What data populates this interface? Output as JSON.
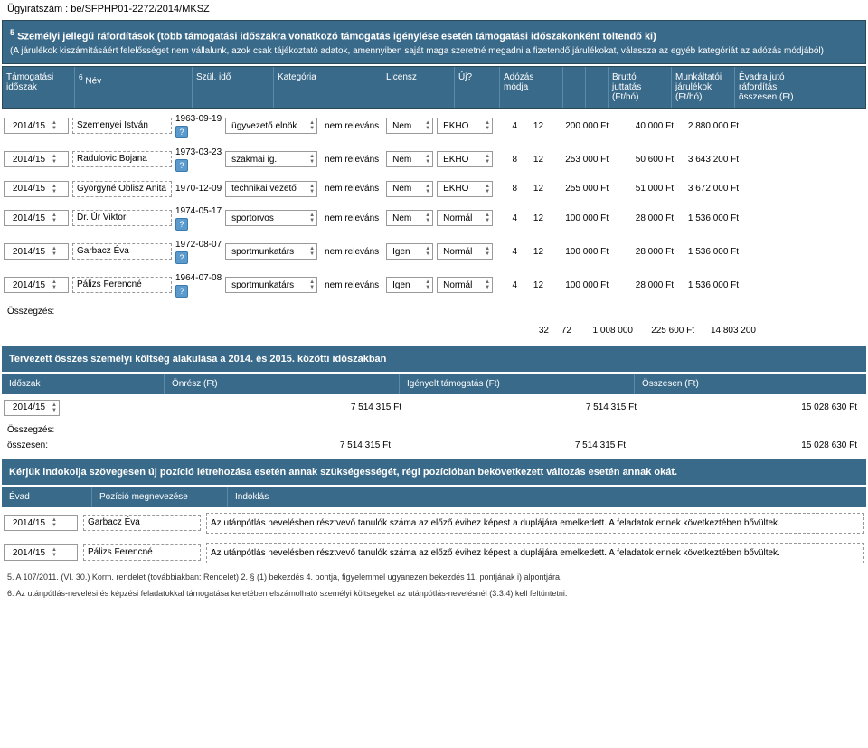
{
  "docId": "Ügyiratszám : be/SFPHP01-2272/2014/MKSZ",
  "header": {
    "sup": "5",
    "title": "Személyi jellegű ráfordítások (több támogatási időszakra vonatkozó támogatás igénylése esetén támogatási időszakonként töltendő ki)",
    "sub": "(A járulékok kiszámításáért felelősséget nem vállalunk, azok csak tájékoztató adatok, amennyiben saját maga szeretné megadni a fizetendő járulékokat, válassza az egyéb kategóriát az adózás módjából)"
  },
  "cols": {
    "idoszak": "Támogatási időszak",
    "nev_sup": "6",
    "nev": "Név",
    "szul": "Szül. idő",
    "kat": "Kategória",
    "lic": "Licensz",
    "uj": "Új?",
    "adozas": "Adózás módja",
    "brutto": "Bruttó juttatás (Ft/hó)",
    "munka": "Munkáltatói járulékok (Ft/hó)",
    "evadra": "Évadra jutó ráfordítás összesen (Ft)"
  },
  "rows": [
    {
      "idoszak": "2014/15",
      "nev": "Szemenyei István",
      "szul": "1963-09-19",
      "kat": "ügyvezető elnök",
      "lic": "nem releváns",
      "uj": "Nem",
      "adozas": "EKHO",
      "n1": "4",
      "n2": "12",
      "brutto": "200 000 Ft",
      "munka": "40 000 Ft",
      "evadra": "2 880 000 Ft"
    },
    {
      "idoszak": "2014/15",
      "nev": "Radulovic Bojana",
      "szul": "1973-03-23",
      "kat": "szakmai ig.",
      "lic": "nem releváns",
      "uj": "Nem",
      "adozas": "EKHO",
      "n1": "8",
      "n2": "12",
      "brutto": "253 000 Ft",
      "munka": "50 600 Ft",
      "evadra": "3 643 200 Ft"
    },
    {
      "idoszak": "2014/15",
      "nev": "Györgyné Oblisz Anita",
      "szul": "1970-12-09",
      "kat": "technikai vezető",
      "lic": "nem releváns",
      "uj": "Nem",
      "adozas": "EKHO",
      "n1": "8",
      "n2": "12",
      "brutto": "255 000 Ft",
      "munka": "51 000 Ft",
      "evadra": "3 672 000 Ft"
    },
    {
      "idoszak": "2014/15",
      "nev": "Dr. Úr Viktor",
      "szul": "1974-05-17",
      "kat": "sportorvos",
      "lic": "nem releváns",
      "uj": "Nem",
      "adozas": "Normál",
      "n1": "4",
      "n2": "12",
      "brutto": "100 000 Ft",
      "munka": "28 000 Ft",
      "evadra": "1 536 000 Ft"
    },
    {
      "idoszak": "2014/15",
      "nev": "Garbacz Éva",
      "szul": "1972-08-07",
      "kat": "sportmunkatárs",
      "lic": "nem releváns",
      "uj": "Igen",
      "adozas": "Normál",
      "n1": "4",
      "n2": "12",
      "brutto": "100 000 Ft",
      "munka": "28 000 Ft",
      "evadra": "1 536 000 Ft"
    },
    {
      "idoszak": "2014/15",
      "nev": "Pálizs Ferencné",
      "szul": "1964-07-08",
      "kat": "sportmunkatárs",
      "lic": "nem releváns",
      "uj": "Igen",
      "adozas": "Normál",
      "n1": "4",
      "n2": "12",
      "brutto": "100 000 Ft",
      "munka": "28 000 Ft",
      "evadra": "1 536 000 Ft"
    }
  ],
  "summary1": {
    "label": "Összegzés:",
    "n1": "32",
    "n2": "72",
    "brutto": "1 008 000",
    "munka": "225 600 Ft",
    "evadra": "14 803 200"
  },
  "section2": {
    "title": "Tervezett összes személyi költség alakulása a 2014. és 2015. közötti időszakban",
    "cols": {
      "idoszak": "Időszak",
      "onresz": "Önrész (Ft)",
      "igenyelt": "Igényelt támogatás (Ft)",
      "osszesen": "Összesen (Ft)"
    },
    "row": {
      "idoszak": "2014/15",
      "onresz": "7 514 315 Ft",
      "igenyelt": "7 514 315 Ft",
      "osszesen": "15 028 630 Ft"
    },
    "sumLabel": "Összegzés:",
    "osszLabel": "összesen:",
    "sum": {
      "onresz": "7 514 315 Ft",
      "igenyelt": "7 514 315 Ft",
      "osszesen": "15 028 630 Ft"
    }
  },
  "section3": {
    "title": "Kérjük indokolja szövegesen új pozíció létrehozása esetén annak szükségességét, régi pozícióban bekövetkezett változás esetén annak okát.",
    "cols": {
      "evad": "Évad",
      "poz": "Pozíció megnevezése",
      "ind": "Indoklás"
    },
    "rows": [
      {
        "evad": "2014/15",
        "poz": "Garbacz Éva",
        "ind": "Az utánpótlás nevelésben résztvevő tanulók száma az előző évihez képest a duplájára emelkedett. A feladatok ennek következtében bővültek."
      },
      {
        "evad": "2014/15",
        "poz": "Pálizs Ferencné",
        "ind": "Az utánpótlás nevelésben résztvevő tanulók száma az előző évihez képest a duplájára emelkedett. A feladatok ennek következtében bővültek."
      }
    ]
  },
  "footnotes": [
    "5. A 107/2011. (VI. 30.) Korm. rendelet (továbbiakban: Rendelet) 2. § (1) bekezdés 4. pontja, figyelemmel ugyanezen bekezdés 11. pontjának i) alpontjára.",
    "6. Az utánpótlás-nevelési és képzési feladatokkal támogatása keretében elszámolható személyi költségeket az utánpótlás-nevelésnél (3.3.4) kell feltüntetni."
  ]
}
